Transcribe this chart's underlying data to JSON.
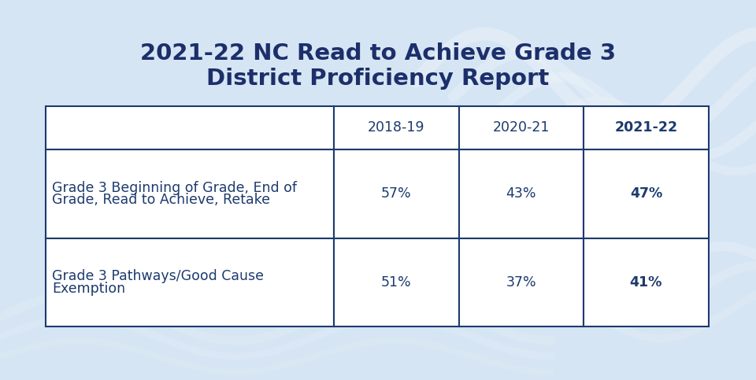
{
  "title_line1": "2021-22 NC Read to Achieve Grade 3",
  "title_line2": "District Proficiency Report",
  "title_color": "#1c2f6b",
  "title_fontsize": 21,
  "bg_color": "#d6e5f3",
  "table_border_color": "#1c3a6e",
  "col_headers": [
    "",
    "2018-19",
    "2020-21",
    "2021-22"
  ],
  "col_header_bold": [
    false,
    false,
    false,
    true
  ],
  "rows": [
    {
      "label_line1": "Grade 3 Beginning of Grade, End of",
      "label_line2": "Grade, Read to Achieve, Retake",
      "values": [
        "57%",
        "43%",
        "47%"
      ],
      "last_bold": true
    },
    {
      "label_line1": "Grade 3 Pathways/Good Cause",
      "label_line2": "Exemption",
      "values": [
        "51%",
        "37%",
        "41%"
      ],
      "last_bold": true
    }
  ],
  "cell_text_color": "#1c3a6e",
  "cell_fontsize": 12.5,
  "header_fontsize": 12.5
}
